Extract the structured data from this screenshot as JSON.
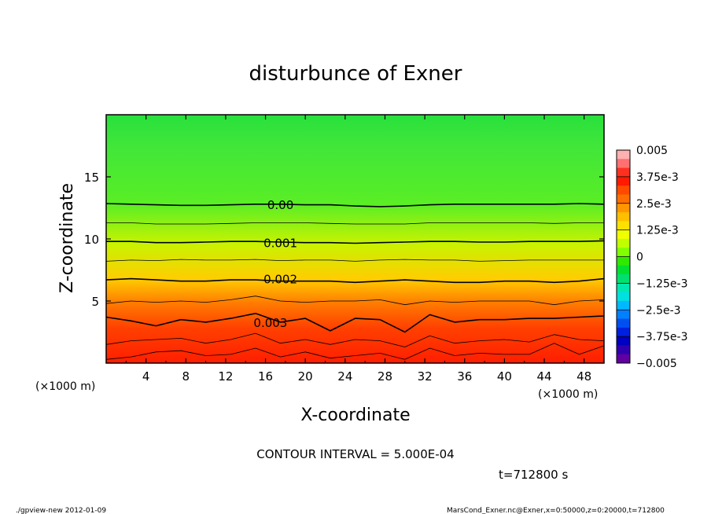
{
  "chart_data": {
    "type": "heatmap",
    "title": "disturbunce of Exner",
    "xlabel": "X-coordinate",
    "ylabel": "Z-coordinate",
    "x_unit": "(×1000 m)",
    "xlim": [
      0,
      50
    ],
    "ylim": [
      0,
      20
    ],
    "x_ticks": [
      "4",
      "8",
      "12",
      "16",
      "20",
      "24",
      "28",
      "32",
      "36",
      "40",
      "44",
      "48"
    ],
    "y_ticks": [
      "5",
      "10",
      "15"
    ],
    "contour_labels": [
      {
        "text": "0.00",
        "x": 17.5,
        "z": 12.8
      },
      {
        "text": "0.001",
        "x": 17.5,
        "z": 9.7
      },
      {
        "text": "0.002",
        "x": 17.5,
        "z": 6.8
      },
      {
        "text": "0.003",
        "x": 16.5,
        "z": 3.3
      }
    ],
    "contours": [
      {
        "level": 0.0,
        "major": true,
        "z": [
          12.85,
          12.8,
          12.75,
          12.7,
          12.7,
          12.75,
          12.8,
          12.8,
          12.75,
          12.75,
          12.65,
          12.6,
          12.65,
          12.75,
          12.8,
          12.8,
          12.8,
          12.8,
          12.8,
          12.85,
          12.8
        ]
      },
      {
        "level": 0.0005,
        "major": false,
        "z": [
          11.3,
          11.3,
          11.2,
          11.2,
          11.2,
          11.25,
          11.3,
          11.3,
          11.3,
          11.25,
          11.2,
          11.2,
          11.2,
          11.3,
          11.3,
          11.3,
          11.3,
          11.3,
          11.25,
          11.3,
          11.3
        ]
      },
      {
        "level": 0.001,
        "major": true,
        "z": [
          9.8,
          9.8,
          9.7,
          9.7,
          9.75,
          9.8,
          9.8,
          9.75,
          9.7,
          9.7,
          9.65,
          9.7,
          9.75,
          9.8,
          9.8,
          9.75,
          9.75,
          9.8,
          9.8,
          9.8,
          9.85
        ]
      },
      {
        "level": 0.0015,
        "major": false,
        "z": [
          8.2,
          8.3,
          8.25,
          8.35,
          8.3,
          8.3,
          8.35,
          8.25,
          8.3,
          8.3,
          8.2,
          8.3,
          8.35,
          8.3,
          8.3,
          8.2,
          8.25,
          8.3,
          8.3,
          8.3,
          8.3
        ]
      },
      {
        "level": 0.002,
        "major": true,
        "z": [
          6.7,
          6.8,
          6.7,
          6.6,
          6.6,
          6.7,
          6.7,
          6.6,
          6.6,
          6.6,
          6.5,
          6.6,
          6.7,
          6.6,
          6.5,
          6.5,
          6.6,
          6.6,
          6.5,
          6.6,
          6.8
        ]
      },
      {
        "level": 0.0025,
        "major": false,
        "z": [
          4.8,
          5.0,
          4.9,
          5.0,
          4.9,
          5.1,
          5.4,
          5.0,
          4.9,
          5.0,
          5.0,
          5.1,
          4.7,
          5.0,
          4.9,
          5.0,
          5.0,
          5.0,
          4.7,
          5.0,
          5.1
        ]
      },
      {
        "level": 0.003,
        "major": true,
        "z": [
          3.7,
          3.4,
          3.0,
          3.5,
          3.3,
          3.6,
          4.0,
          3.3,
          3.6,
          2.6,
          3.6,
          3.5,
          2.5,
          3.9,
          3.3,
          3.5,
          3.5,
          3.6,
          3.6,
          3.7,
          3.8
        ]
      },
      {
        "level": 0.0035,
        "major": false,
        "z": [
          1.5,
          1.8,
          1.9,
          2.0,
          1.6,
          1.9,
          2.4,
          1.6,
          1.9,
          1.5,
          1.9,
          1.8,
          1.3,
          2.2,
          1.6,
          1.8,
          1.9,
          1.7,
          2.3,
          1.9,
          1.8
        ]
      },
      {
        "level": 0.004,
        "major": false,
        "z": [
          0.3,
          0.5,
          0.9,
          1.0,
          0.6,
          0.7,
          1.2,
          0.5,
          0.9,
          0.4,
          0.6,
          0.8,
          0.3,
          1.2,
          0.6,
          0.8,
          0.7,
          0.7,
          1.6,
          0.7,
          1.4
        ]
      }
    ],
    "colorbar": {
      "range": [
        -0.005,
        0.005
      ],
      "tick_labels": [
        "0.005",
        "3.75e-3",
        "2.5e-3",
        "1.25e-3",
        "0",
        "−1.25e-3",
        "−2.5e-3",
        "−3.75e-3",
        "−0.005"
      ],
      "colors": [
        "#ffb0b0",
        "#ff7070",
        "#ff3020",
        "#ff1a00",
        "#ff4a00",
        "#ff6e00",
        "#ff9600",
        "#ffbe00",
        "#ffe000",
        "#f0ff00",
        "#c0ff00",
        "#80ff00",
        "#30e800",
        "#00e030",
        "#00e070",
        "#00e8b0",
        "#00e0e0",
        "#00b8ff",
        "#0080ff",
        "#0050f0",
        "#0020e0",
        "#0000c0",
        "#3000b0",
        "#6000a0"
      ]
    }
  },
  "annotations": {
    "contour_interval": "CONTOUR INTERVAL = 5.000E-04",
    "time": "t=712800 s",
    "footer_left": "./gpview-new  2012-01-09",
    "footer_right": "MarsCond_Exner.nc@Exner,x=0:50000,z=0:20000,t=712800"
  }
}
